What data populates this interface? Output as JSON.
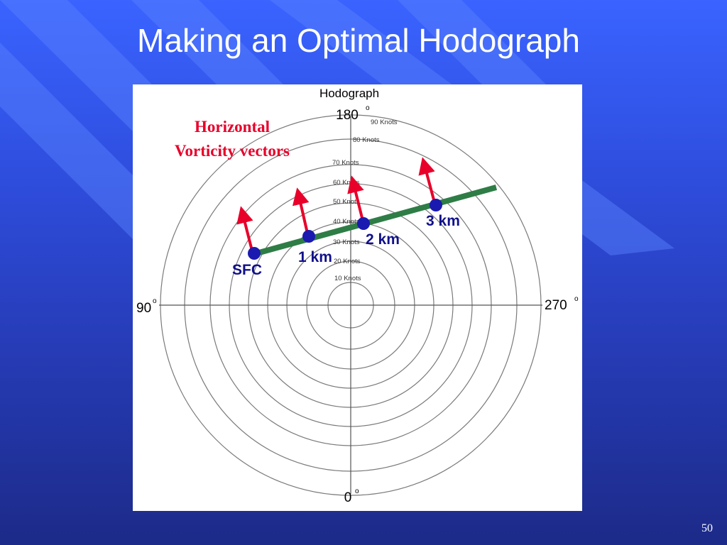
{
  "slide": {
    "title": "Making an Optimal Hodograph",
    "page_number": "50"
  },
  "diagram": {
    "title": "Hodograph",
    "directions": {
      "top": "180",
      "bottom": "0",
      "left": "90",
      "right": "270",
      "degree_symbol": "o"
    },
    "rings": [
      "10 Knots",
      "20 Knots",
      "30 Knots",
      "40 Knots",
      "50 Knots",
      "60 Knots",
      "70 Knots",
      "80 Knots",
      "90 Knots"
    ],
    "annotation": {
      "line1": "Horizontal",
      "line2": "Vorticity vectors"
    },
    "points": [
      {
        "label": "SFC"
      },
      {
        "label": "1 km"
      },
      {
        "label": "2 km"
      },
      {
        "label": "3 km"
      }
    ],
    "colors": {
      "shear_line": "#2e7d46",
      "vorticity_arrow": "#e8002a",
      "height_point": "#1a1ab0",
      "annotation_text": "#e8002a",
      "point_label": "#10108a"
    }
  }
}
